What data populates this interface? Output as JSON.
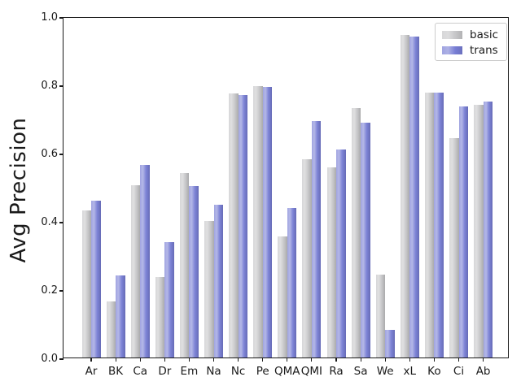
{
  "chart_data": {
    "type": "bar",
    "title": "",
    "xlabel": "",
    "ylabel": "Avg Precision",
    "ylim": [
      0.0,
      1.0
    ],
    "ytick_labels": [
      "0.0",
      "0.2",
      "0.4",
      "0.6",
      "0.8",
      "1.0"
    ],
    "grid": false,
    "legend_position": "upper right",
    "categories": [
      "Ar",
      "BK",
      "Ca",
      "Dr",
      "Em",
      "Na",
      "Nc",
      "Pe",
      "QMA",
      "QMI",
      "Ra",
      "Sa",
      "We",
      "xL",
      "Ko",
      "Ci",
      "Ab"
    ],
    "series": [
      {
        "name": "basic",
        "color": "#c6c6c8",
        "values": [
          0.43,
          0.165,
          0.505,
          0.235,
          0.54,
          0.4,
          0.775,
          0.795,
          0.355,
          0.58,
          0.558,
          0.73,
          0.243,
          0.945,
          0.776,
          0.642,
          0.74
        ]
      },
      {
        "name": "trans",
        "color": "#777dd4",
        "values": [
          0.46,
          0.24,
          0.565,
          0.338,
          0.502,
          0.447,
          0.77,
          0.792,
          0.438,
          0.692,
          0.61,
          0.688,
          0.081,
          0.94,
          0.777,
          0.736,
          0.75
        ]
      }
    ]
  }
}
